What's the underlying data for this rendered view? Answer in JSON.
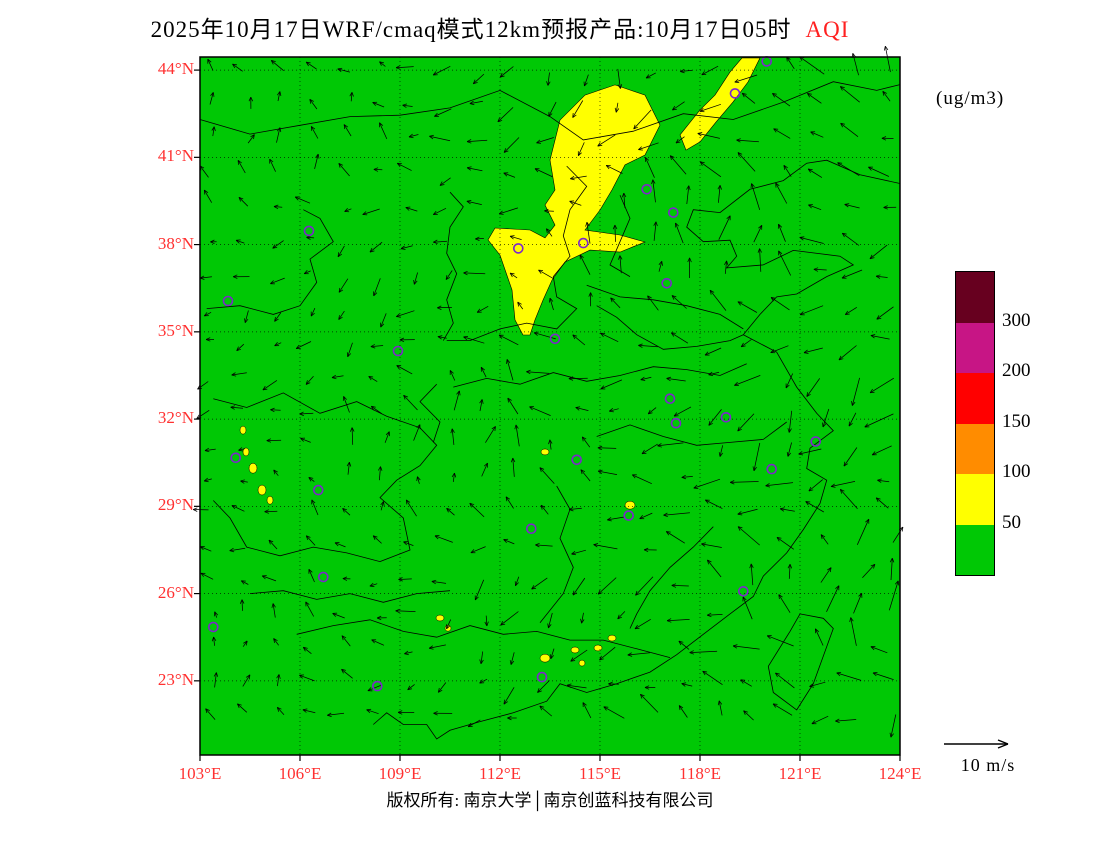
{
  "title": {
    "text": "2025年10月17日WRF/cmaq模式12km预报产品:10月17日05时",
    "species": "AQI"
  },
  "units_label": "(ug/m3)",
  "wind_legend_label": "10 m/s",
  "footer_text": "版权所有: 南京大学│南京创蓝科技有限公司",
  "colors": {
    "background_green": "#00C805",
    "anomaly_yellow": "#FFFF00",
    "axis_label_red": "#FF3030",
    "species_label_red": "#FF2020",
    "station_marker_purple": "#7D26CD",
    "boundary_black": "#000000"
  },
  "axes": {
    "lat_tick_labels": [
      "44°N",
      "41°N",
      "38°N",
      "35°N",
      "32°N",
      "29°N",
      "26°N",
      "23°N"
    ],
    "lon_tick_labels": [
      "103°E",
      "106°E",
      "109°E",
      "112°E",
      "115°E",
      "118°E",
      "121°E",
      "124°E"
    ]
  },
  "colorbar": {
    "tick_labels": [
      "300",
      "200",
      "150",
      "100",
      "50"
    ],
    "segment_colors_top_to_bottom": [
      "#67001F",
      "#C71585",
      "#FF0000",
      "#FF8C00",
      "#FFFF00",
      "#00C805"
    ]
  },
  "chart_data": {
    "type": "heatmap",
    "title": "2025年10月17日WRF/cmaq模式12km预报产品:10月17日05时 AQI",
    "variable": "AQI",
    "units": "ug/m3",
    "model": "WRF/cmaq 12km",
    "valid_time": "2025-10-17 05时",
    "lon_range": [
      103,
      124
    ],
    "lat_range": [
      20.45,
      44.45
    ],
    "lon_gridlines": [
      106,
      109,
      112,
      115,
      118,
      121
    ],
    "lat_gridlines": [
      23,
      26,
      29,
      32,
      35,
      38,
      41,
      44
    ],
    "colorbar_levels": [
      50,
      100,
      150,
      200,
      300
    ],
    "background_field": "AQI 0-50 (green) over most of domain",
    "elevated_field": "AQI 50-100 (yellow) band from Shanxi through Hebei into Inner Mongolia / NE streak",
    "wind_reference_speed_mps": 10,
    "yellow_regions": [
      [
        [
          112.69,
          34.89
        ],
        [
          112.45,
          35.41
        ],
        [
          112.36,
          36.44
        ],
        [
          112.0,
          37.64
        ],
        [
          111.64,
          38.16
        ],
        [
          111.85,
          38.57
        ],
        [
          112.9,
          38.5
        ],
        [
          113.35,
          38.23
        ],
        [
          113.65,
          38.67
        ],
        [
          113.35,
          39.36
        ],
        [
          113.65,
          39.88
        ],
        [
          113.5,
          40.91
        ],
        [
          113.8,
          42.28
        ],
        [
          114.55,
          43.14
        ],
        [
          115.45,
          43.49
        ],
        [
          116.35,
          43.14
        ],
        [
          116.8,
          42.11
        ],
        [
          116.35,
          41.08
        ],
        [
          115.75,
          40.74
        ],
        [
          115.36,
          39.88
        ],
        [
          115.0,
          39.19
        ],
        [
          114.55,
          38.5
        ],
        [
          115.6,
          38.33
        ],
        [
          116.35,
          38.09
        ],
        [
          115.6,
          37.74
        ],
        [
          114.7,
          37.81
        ],
        [
          113.95,
          37.4
        ],
        [
          113.56,
          36.78
        ],
        [
          113.29,
          36.09
        ],
        [
          113.05,
          35.41
        ],
        [
          112.9,
          34.89
        ]
      ],
      [
        [
          117.4,
          41.77
        ],
        [
          118.0,
          42.63
        ],
        [
          118.45,
          43.14
        ],
        [
          118.9,
          43.93
        ],
        [
          119.26,
          44.42
        ],
        [
          119.8,
          44.42
        ],
        [
          119.44,
          43.59
        ],
        [
          118.99,
          42.9
        ],
        [
          118.48,
          42.21
        ],
        [
          118.0,
          41.53
        ],
        [
          117.58,
          41.25
        ]
      ]
    ],
    "yellow_spots": [
      [
        104.29,
        31.62,
        3,
        4
      ],
      [
        104.38,
        30.87,
        3,
        4
      ],
      [
        104.59,
        30.31,
        4,
        5
      ],
      [
        104.86,
        29.56,
        4,
        5
      ],
      [
        105.1,
        29.21,
        3,
        4
      ],
      [
        113.35,
        30.87,
        4,
        3
      ],
      [
        115.9,
        29.04,
        5,
        4
      ],
      [
        110.2,
        25.16,
        4,
        3
      ],
      [
        110.44,
        24.81,
        3,
        3
      ],
      [
        113.35,
        23.78,
        5,
        4
      ],
      [
        114.25,
        24.06,
        4,
        3
      ],
      [
        114.94,
        24.13,
        4,
        3
      ],
      [
        115.36,
        24.47,
        4,
        3
      ],
      [
        114.46,
        23.61,
        3,
        3
      ]
    ],
    "station_markers": [
      [
        120.0,
        44.3
      ],
      [
        119.05,
        43.2
      ],
      [
        116.4,
        39.9
      ],
      [
        117.2,
        39.1
      ],
      [
        114.5,
        38.05
      ],
      [
        112.55,
        37.87
      ],
      [
        106.27,
        38.47
      ],
      [
        103.84,
        36.06
      ],
      [
        108.94,
        34.34
      ],
      [
        113.65,
        34.76
      ],
      [
        117.0,
        36.67
      ],
      [
        104.07,
        30.67
      ],
      [
        106.55,
        29.56
      ],
      [
        112.94,
        28.23
      ],
      [
        114.3,
        30.6
      ],
      [
        115.86,
        28.68
      ],
      [
        117.28,
        31.86
      ],
      [
        118.78,
        32.06
      ],
      [
        121.47,
        31.23
      ],
      [
        120.15,
        30.28
      ],
      [
        119.3,
        26.08
      ],
      [
        106.7,
        26.57
      ],
      [
        108.32,
        22.82
      ],
      [
        113.26,
        23.13
      ],
      [
        103.4,
        24.85
      ],
      [
        117.1,
        32.7
      ]
    ]
  }
}
